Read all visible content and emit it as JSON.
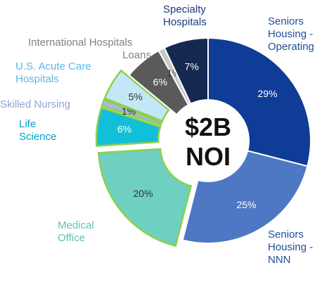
{
  "chart_data": {
    "type": "donut",
    "center_label": "$2B NOI",
    "categories": [
      "Seniors Housing - Operating",
      "Seniors Housing - NNN",
      "Medical Office",
      "Life Science",
      "Skilled Nursing",
      "U.S. Acute Care Hospitals",
      "International Hospitals",
      "Loans",
      "Specialty Hospitals"
    ],
    "values": [
      29,
      25,
      20,
      6,
      1,
      5,
      6,
      1,
      7
    ],
    "value_labels": [
      "29%",
      "25%",
      "20%",
      "6%",
      "1%",
      "5%",
      "6%",
      "1%",
      "7%"
    ],
    "colors": [
      "#0e3c96",
      "#4f78c4",
      "#6fcfc0",
      "#12bfd8",
      "#a9b8dc",
      "#c3e7f7",
      "#5a5a5a",
      "#c8c8c8",
      "#13294f"
    ],
    "label_colors": [
      "#1f4e9c",
      "#1f4e9c",
      "#5cc4b0",
      "#00a3c4",
      "#8fa5d6",
      "#5bb8e6",
      "#808080",
      "#808080",
      "#1a3a7a"
    ],
    "exploded": [
      false,
      false,
      true,
      true,
      true,
      true,
      false,
      false,
      false
    ],
    "explode_border": "#8ccf4d"
  }
}
